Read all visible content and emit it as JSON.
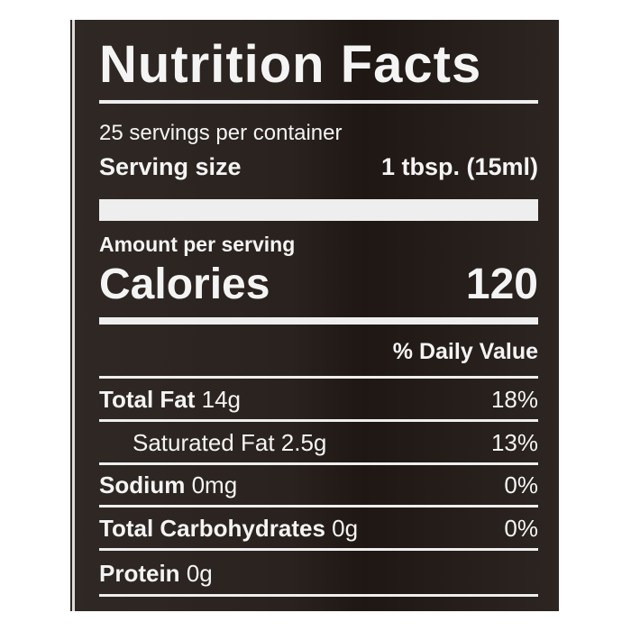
{
  "title": "Nutrition Facts",
  "servings_per_container": "25 servings per container",
  "serving_size": {
    "label": "Serving size",
    "value": "1 tbsp. (15ml)"
  },
  "amount_per_serving": "Amount per serving",
  "calories": {
    "label": "Calories",
    "value": "120"
  },
  "daily_value_header": "% Daily Value",
  "nutrients": [
    {
      "name": "Total Fat",
      "amount": "14g",
      "dv": "18%"
    },
    {
      "name": "Saturated Fat",
      "amount": "2.5g",
      "dv": "13%"
    },
    {
      "name": "Sodium",
      "amount": "0mg",
      "dv": "0%"
    },
    {
      "name": "Total Carbohydrates",
      "amount": "0g",
      "dv": "0%"
    },
    {
      "name": "Protein",
      "amount": "0g",
      "dv": ""
    }
  ],
  "colors": {
    "background": "#2a221e",
    "text": "#f4f4f4"
  }
}
